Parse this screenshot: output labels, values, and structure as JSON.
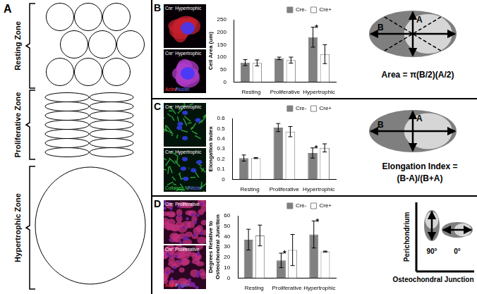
{
  "panel_labels": [
    "A",
    "B",
    "C",
    "D"
  ],
  "zone_diagram": {
    "zones": [
      "Resting Zone",
      "Proliferative Zone",
      "Hypertrophic Zone"
    ]
  },
  "micrographs": [
    {
      "images": [
        "Cre⁻ Hypertrophic",
        "Cre⁺ Hypertrophic"
      ],
      "stain": [
        {
          "text": "Actin",
          "color": "#ff3030"
        },
        {
          "text": "/",
          "color": "#ffffff"
        },
        {
          "text": "Nuclei",
          "color": "#6a7bff"
        }
      ]
    },
    {
      "images": [
        "Cre⁻ Hypertrophic",
        "Cre⁺ Hypertrophic"
      ],
      "stain": [
        {
          "text": "Collagen X",
          "color": "#3fd24a"
        },
        {
          "text": "/",
          "color": "#ffffff"
        },
        {
          "text": "Nuclei",
          "color": "#6a7bff"
        }
      ]
    },
    {
      "images": [
        "Cre⁻ Proliferative",
        "Cre⁺ Proliferative"
      ],
      "stain": [
        {
          "text": "Actin",
          "color": "#ff3030"
        },
        {
          "text": "/",
          "color": "#ffffff"
        },
        {
          "text": "Nuclei",
          "color": "#6a7bff"
        }
      ]
    }
  ],
  "chart_data": [
    {
      "type": "bar",
      "ylabel": "Cell Area (um)",
      "categories": [
        "Resting",
        "Proliferative",
        "Hypertrophic"
      ],
      "series": [
        {
          "name": "Cre-",
          "color": "#808080",
          "values": [
            78,
            95,
            180
          ],
          "errors": [
            12,
            5,
            40
          ]
        },
        {
          "name": "Cre+",
          "color": "#ffffff",
          "values": [
            77,
            88,
            112
          ],
          "errors": [
            12,
            12,
            38
          ]
        }
      ],
      "ylim": [
        0,
        250
      ],
      "yticks": [
        0,
        50,
        100,
        150,
        200,
        250
      ],
      "grid": false,
      "legend": "top",
      "annotations": [
        {
          "text": "*",
          "category": "Hypertrophic",
          "series": "Cre-"
        }
      ]
    },
    {
      "type": "bar",
      "ylabel": "Elongation Index",
      "categories": [
        "Resting",
        "Proliferative",
        "Hypertrophic"
      ],
      "series": [
        {
          "name": "Cre-",
          "color": "#808080",
          "values": [
            0.21,
            0.51,
            0.26
          ],
          "errors": [
            0.03,
            0.04,
            0.05
          ]
        },
        {
          "name": "Cre+",
          "color": "#ffffff",
          "values": [
            0.21,
            0.47,
            0.31
          ],
          "errors": [
            0.005,
            0.05,
            0.04
          ]
        }
      ],
      "ylim": [
        0,
        0.6
      ],
      "yticks": [
        0,
        0.1,
        0.2,
        0.3,
        0.4,
        0.5,
        0.6
      ],
      "grid": false,
      "legend": "top",
      "annotations": [
        {
          "text": "*",
          "category": "Hypertrophic",
          "series": "Cre-"
        }
      ]
    },
    {
      "type": "bar",
      "ylabel": "Degrees Relative to Osteochondral Junction",
      "categories": [
        "Resting",
        "Proliferative",
        "Hypertrophic"
      ],
      "series": [
        {
          "name": "Cre-",
          "color": "#808080",
          "values": [
            37,
            17,
            42
          ],
          "errors": [
            10,
            7,
            13
          ]
        },
        {
          "name": "Cre+",
          "color": "#ffffff",
          "values": [
            41,
            27,
            25.5
          ],
          "errors": [
            10,
            15,
            0.5
          ]
        }
      ],
      "ylim": [
        0,
        60
      ],
      "yticks": [
        0,
        10,
        20,
        30,
        40,
        50,
        60
      ],
      "grid": false,
      "legend": "top",
      "annotations": [
        {
          "text": "*",
          "category": "Proliferative",
          "series": "Cre-"
        },
        {
          "text": "*",
          "category": "Hypertrophic",
          "series": "Cre-"
        }
      ]
    }
  ],
  "schematics": [
    {
      "labels": [
        "A",
        "B"
      ],
      "formula": "Area = π(B/2)(A/2)"
    },
    {
      "labels": [
        "A",
        "B"
      ],
      "formula": "Elongation Index = (B-A)/(B+A)"
    },
    {
      "angles": [
        "90°",
        "0°"
      ],
      "vertical_axis": "Perichondrium",
      "horizontal_axis": "Osteochondral Junction"
    }
  ]
}
